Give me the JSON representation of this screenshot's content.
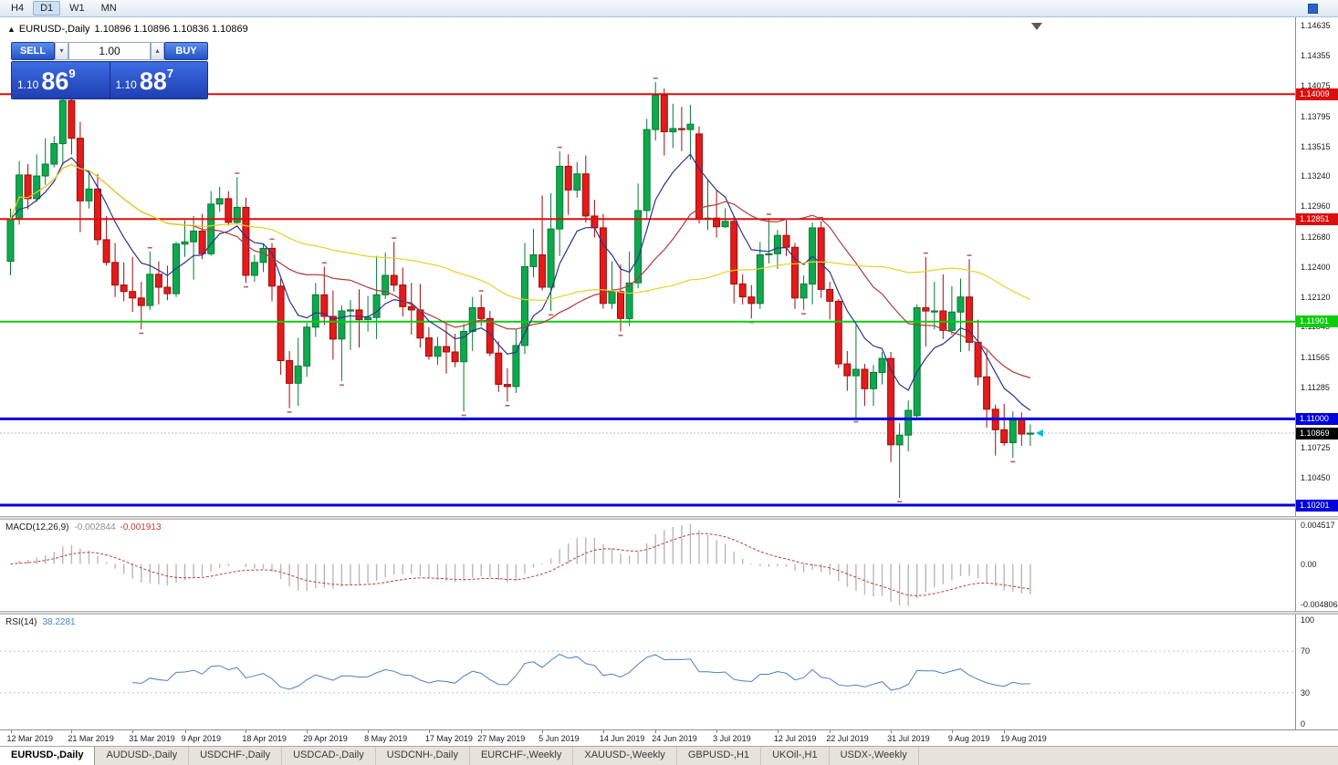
{
  "toolbar": {
    "timeframes": [
      "H4",
      "D1",
      "W1",
      "MN"
    ],
    "active": "D1"
  },
  "chart": {
    "symbol_label": "EURUSD-,Daily",
    "quotes_line": "1.10896 1.10896 1.10836 1.10869"
  },
  "trade_panel": {
    "sell_label": "SELL",
    "buy_label": "BUY",
    "lot_value": "1.00",
    "sell_price": {
      "prefix": "1.10",
      "big": "86",
      "sup": "9"
    },
    "buy_price": {
      "prefix": "1.10",
      "big": "88",
      "sup": "7"
    }
  },
  "price_axis": {
    "labels": [
      "1.14635",
      "1.14355",
      "1.14075",
      "1.13795",
      "1.13515",
      "1.13240",
      "1.12960",
      "1.12680",
      "1.12400",
      "1.12120",
      "1.11845",
      "1.11565",
      "1.11285",
      "1.10725",
      "1.10450"
    ]
  },
  "current_price": {
    "value": 1.10869,
    "label": "1.10869",
    "tag_color": "#000000"
  },
  "macd_panel": {
    "name": "MACD(12,26,9)",
    "value_main": "-0.002844",
    "value_signal": "-0.001913",
    "axis_labels": [
      "0.004517",
      "0.00",
      "-0.004806"
    ]
  },
  "rsi_panel": {
    "name": "RSI(14)",
    "value": "38.2281",
    "axis_labels": [
      "100",
      "70",
      "30",
      "0"
    ],
    "levels": [
      70,
      30
    ]
  },
  "date_axis": {
    "labels": [
      "12 Mar 2019",
      "21 Mar 2019",
      "31 Mar 2019",
      "9 Apr 2019",
      "18 Apr 2019",
      "29 Apr 2019",
      "8 May 2019",
      "17 May 2019",
      "27 May 2019",
      "5 Jun 2019",
      "14 Jun 2019",
      "24 Jun 2019",
      "3 Jul 2019",
      "12 Jul 2019",
      "22 Jul 2019",
      "31 Jul 2019",
      "9 Aug 2019",
      "19 Aug 2019"
    ],
    "tick_indices": [
      0,
      7,
      14,
      20,
      27,
      34,
      41,
      48,
      54,
      61,
      68,
      74,
      81,
      88,
      94,
      101,
      108,
      114
    ]
  },
  "tabs": [
    "EURUSD-,Daily",
    "AUDUSD-,Daily",
    "USDCHF-,Daily",
    "USDCAD-,Daily",
    "USDCNH-,Daily",
    "EURCHF-,Weekly",
    "XAUUSD-,Weekly",
    "GBPUSD-,H1",
    "UKOil-,H1",
    "USDX-,Weekly"
  ],
  "active_tab": "EURUSD-,Daily",
  "chart_data": {
    "type": "candlestick",
    "symbol": "EURUSD-",
    "timeframe": "Daily",
    "y_range": [
      1.101,
      1.1472
    ],
    "macd_range": [
      -0.004806,
      0.004517
    ],
    "colors": {
      "bull": "#0fa84e",
      "bull_edge": "#067a33",
      "bear": "#e31b1b",
      "bear_edge": "#9c0d0d",
      "ma_fast": "#2e3192",
      "ma_mid": "#b03a3a",
      "ma_slow": "#e8d21f",
      "macd_hist": "#b8b8b8",
      "macd_signal": "#c23b3b",
      "rsi_line": "#4a80c0",
      "fractal": "#b86060"
    },
    "hlines": [
      {
        "price": 1.14009,
        "label": "1.14009",
        "color": "#dd0d0d",
        "width": 2
      },
      {
        "price": 1.12851,
        "label": "1.12851",
        "color": "#dd0d0d",
        "width": 2
      },
      {
        "price": 1.11901,
        "label": "1.11901",
        "color": "#0ccc0c",
        "width": 2
      },
      {
        "price": 1.11,
        "label": "1.11000",
        "color": "#0000dd",
        "width": 3
      },
      {
        "price": 1.10201,
        "label": "1.10201",
        "color": "#0000dd",
        "width": 3
      }
    ],
    "indicators": {
      "moving_averages": [
        {
          "method": "ema",
          "period": 8,
          "color_key": "ma_fast"
        },
        {
          "method": "sma",
          "period": 21,
          "color_key": "ma_mid"
        },
        {
          "method": "sma",
          "period": 50,
          "color_key": "ma_slow"
        }
      ],
      "macd": [
        12,
        26,
        9
      ],
      "rsi_period": 14
    },
    "candles": [
      [
        1.1246,
        1.1295,
        1.1233,
        1.1285
      ],
      [
        1.1285,
        1.1339,
        1.128,
        1.1326
      ],
      [
        1.1326,
        1.1336,
        1.1294,
        1.1304
      ],
      [
        1.1304,
        1.1345,
        1.1301,
        1.1325
      ],
      [
        1.1325,
        1.136,
        1.1317,
        1.1336
      ],
      [
        1.1336,
        1.1362,
        1.1333,
        1.1355
      ],
      [
        1.1355,
        1.1404,
        1.1335,
        1.1395
      ],
      [
        1.1395,
        1.1402,
        1.1345,
        1.136
      ],
      [
        1.136,
        1.1375,
        1.1273,
        1.1302
      ],
      [
        1.1302,
        1.133,
        1.1295,
        1.1313
      ],
      [
        1.1313,
        1.1327,
        1.1261,
        1.1266
      ],
      [
        1.1266,
        1.1288,
        1.1242,
        1.1245
      ],
      [
        1.1245,
        1.1263,
        1.1213,
        1.1224
      ],
      [
        1.1224,
        1.1245,
        1.1209,
        1.1218
      ],
      [
        1.1218,
        1.125,
        1.1199,
        1.1212
      ],
      [
        1.1212,
        1.1227,
        1.1183,
        1.1205
      ],
      [
        1.1205,
        1.1255,
        1.1201,
        1.1234
      ],
      [
        1.1234,
        1.1246,
        1.1206,
        1.1222
      ],
      [
        1.1222,
        1.1242,
        1.121,
        1.1216
      ],
      [
        1.1216,
        1.1264,
        1.1213,
        1.1262
      ],
      [
        1.1262,
        1.1284,
        1.125,
        1.1264
      ],
      [
        1.1264,
        1.1288,
        1.1229,
        1.1274
      ],
      [
        1.1274,
        1.129,
        1.1248,
        1.1253
      ],
      [
        1.1253,
        1.1311,
        1.1251,
        1.1299
      ],
      [
        1.1299,
        1.1315,
        1.1292,
        1.1304
      ],
      [
        1.1304,
        1.1311,
        1.1279,
        1.1282
      ],
      [
        1.1282,
        1.1324,
        1.128,
        1.1296
      ],
      [
        1.1296,
        1.1305,
        1.1226,
        1.1233
      ],
      [
        1.1233,
        1.1252,
        1.1227,
        1.1245
      ],
      [
        1.1245,
        1.1262,
        1.1236,
        1.1258
      ],
      [
        1.1258,
        1.1263,
        1.1209,
        1.1223
      ],
      [
        1.1223,
        1.123,
        1.1141,
        1.1154
      ],
      [
        1.1154,
        1.1163,
        1.111,
        1.1133
      ],
      [
        1.1133,
        1.1175,
        1.1112,
        1.1149
      ],
      [
        1.1149,
        1.1189,
        1.1139,
        1.1185
      ],
      [
        1.1185,
        1.1226,
        1.1176,
        1.1215
      ],
      [
        1.1215,
        1.1241,
        1.1187,
        1.1195
      ],
      [
        1.1195,
        1.1219,
        1.1155,
        1.1174
      ],
      [
        1.1174,
        1.1205,
        1.1135,
        1.12
      ],
      [
        1.12,
        1.121,
        1.1164,
        1.1201
      ],
      [
        1.1201,
        1.122,
        1.1166,
        1.1192
      ],
      [
        1.1192,
        1.1214,
        1.1181,
        1.1194
      ],
      [
        1.1194,
        1.1251,
        1.1174,
        1.1215
      ],
      [
        1.1215,
        1.1254,
        1.1211,
        1.1233
      ],
      [
        1.1233,
        1.1264,
        1.1218,
        1.1224
      ],
      [
        1.1224,
        1.124,
        1.1195,
        1.1204
      ],
      [
        1.1204,
        1.1226,
        1.1178,
        1.1201
      ],
      [
        1.1201,
        1.1225,
        1.1166,
        1.1175
      ],
      [
        1.1175,
        1.1185,
        1.1155,
        1.1158
      ],
      [
        1.1158,
        1.1176,
        1.115,
        1.1167
      ],
      [
        1.1167,
        1.1188,
        1.1142,
        1.1162
      ],
      [
        1.1162,
        1.1179,
        1.1148,
        1.1153
      ],
      [
        1.1153,
        1.1188,
        1.1107,
        1.1181
      ],
      [
        1.1181,
        1.1213,
        1.1163,
        1.1203
      ],
      [
        1.1203,
        1.1215,
        1.1186,
        1.1193
      ],
      [
        1.1193,
        1.12,
        1.1158,
        1.1161
      ],
      [
        1.1161,
        1.1172,
        1.1125,
        1.1132
      ],
      [
        1.1132,
        1.1147,
        1.1116,
        1.113
      ],
      [
        1.113,
        1.1183,
        1.1124,
        1.1168
      ],
      [
        1.1168,
        1.1263,
        1.116,
        1.1241
      ],
      [
        1.1241,
        1.1276,
        1.1231,
        1.1252
      ],
      [
        1.1252,
        1.1307,
        1.1219,
        1.1222
      ],
      [
        1.1222,
        1.1309,
        1.12,
        1.1276
      ],
      [
        1.1276,
        1.1348,
        1.1251,
        1.1334
      ],
      [
        1.1334,
        1.1345,
        1.1289,
        1.1312
      ],
      [
        1.1312,
        1.1338,
        1.1305,
        1.1327
      ],
      [
        1.1327,
        1.1344,
        1.1282,
        1.1288
      ],
      [
        1.1288,
        1.1303,
        1.1268,
        1.1277
      ],
      [
        1.1277,
        1.129,
        1.1202,
        1.1207
      ],
      [
        1.1207,
        1.1246,
        1.1202,
        1.1218
      ],
      [
        1.1218,
        1.1243,
        1.1181,
        1.1193
      ],
      [
        1.1193,
        1.1255,
        1.1186,
        1.1226
      ],
      [
        1.1226,
        1.1318,
        1.1221,
        1.1293
      ],
      [
        1.1293,
        1.1378,
        1.1285,
        1.1368
      ],
      [
        1.1368,
        1.1412,
        1.1358,
        1.14
      ],
      [
        1.14,
        1.1406,
        1.1344,
        1.1366
      ],
      [
        1.1366,
        1.1392,
        1.1351,
        1.1369
      ],
      [
        1.1369,
        1.1389,
        1.1348,
        1.1368
      ],
      [
        1.1368,
        1.1391,
        1.134,
        1.1373
      ],
      [
        1.1364,
        1.1371,
        1.1281,
        1.1285
      ],
      [
        1.1285,
        1.1322,
        1.1275,
        1.1286
      ],
      [
        1.1286,
        1.1312,
        1.1268,
        1.1278
      ],
      [
        1.1278,
        1.1295,
        1.1277,
        1.1283
      ],
      [
        1.1283,
        1.1288,
        1.1207,
        1.1225
      ],
      [
        1.1225,
        1.1234,
        1.1206,
        1.1213
      ],
      [
        1.1213,
        1.1224,
        1.1193,
        1.1207
      ],
      [
        1.1207,
        1.1264,
        1.1202,
        1.1252
      ],
      [
        1.1252,
        1.1286,
        1.1244,
        1.1253
      ],
      [
        1.1253,
        1.1275,
        1.1239,
        1.127
      ],
      [
        1.127,
        1.1284,
        1.1251,
        1.1259
      ],
      [
        1.1259,
        1.1263,
        1.1202,
        1.1212
      ],
      [
        1.1212,
        1.1233,
        1.1201,
        1.1225
      ],
      [
        1.1225,
        1.1282,
        1.1206,
        1.1277
      ],
      [
        1.1277,
        1.1283,
        1.1212,
        1.122
      ],
      [
        1.122,
        1.1227,
        1.1192,
        1.1209
      ],
      [
        1.1209,
        1.1211,
        1.1147,
        1.1151
      ],
      [
        1.1151,
        1.1163,
        1.1126,
        1.114
      ],
      [
        1.114,
        1.1187,
        1.1101,
        1.1146
      ],
      [
        1.1146,
        1.1151,
        1.1112,
        1.1128
      ],
      [
        1.1128,
        1.115,
        1.1112,
        1.1143
      ],
      [
        1.1143,
        1.1162,
        1.1132,
        1.1156
      ],
      [
        1.1156,
        1.1162,
        1.106,
        1.1076
      ],
      [
        1.1076,
        1.1096,
        1.1027,
        1.1085
      ],
      [
        1.1085,
        1.1117,
        1.107,
        1.1108
      ],
      [
        1.1103,
        1.1206,
        1.1101,
        1.1203
      ],
      [
        1.1203,
        1.125,
        1.1167,
        1.12
      ],
      [
        1.12,
        1.1227,
        1.1183,
        1.12
      ],
      [
        1.12,
        1.1234,
        1.1174,
        1.1182
      ],
      [
        1.1182,
        1.1223,
        1.1178,
        1.1199
      ],
      [
        1.1199,
        1.123,
        1.1162,
        1.1213
      ],
      [
        1.1213,
        1.1248,
        1.1163,
        1.1171
      ],
      [
        1.1171,
        1.1192,
        1.1131,
        1.1139
      ],
      [
        1.1139,
        1.1163,
        1.1092,
        1.1109
      ],
      [
        1.1109,
        1.1113,
        1.1066,
        1.109
      ],
      [
        1.109,
        1.1114,
        1.1075,
        1.1078
      ],
      [
        1.1078,
        1.1107,
        1.1064,
        1.1099
      ],
      [
        1.1099,
        1.1106,
        1.1075,
        1.1086
      ],
      [
        1.1086,
        1.1095,
        1.1075,
        1.10869
      ]
    ]
  }
}
